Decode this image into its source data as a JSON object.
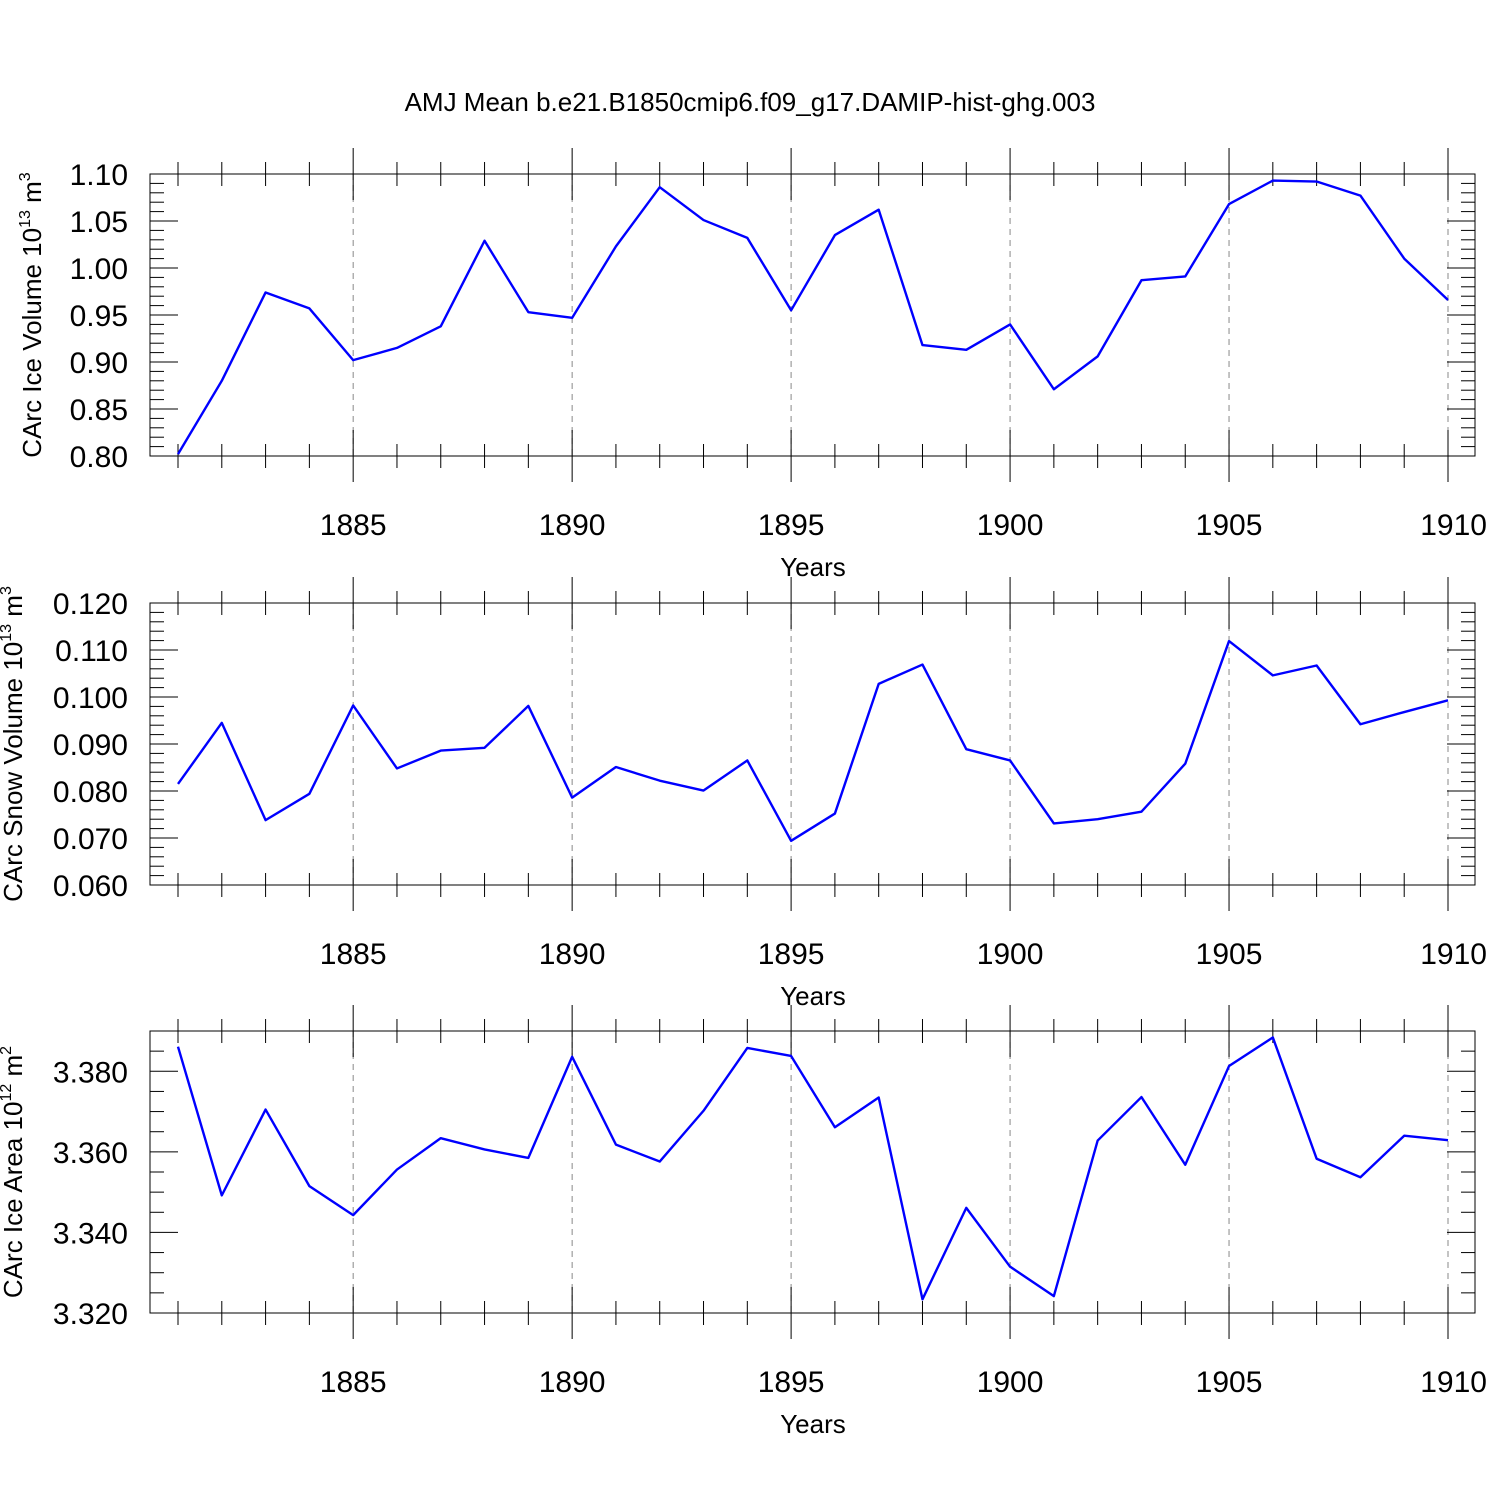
{
  "title": "AMJ Mean b.e21.B1850cmip6.f09_g17.DAMIP-hist-ghg.003",
  "colors": {
    "line": "#0000ff",
    "grid": "#888888"
  },
  "chart_data": [
    {
      "type": "line",
      "xlabel": "Years",
      "ylabel": "CArc Ice Volume 10",
      "ylabel_sup": "13",
      "ylabel_unit": "m",
      "ylabel_unit_sup": "3",
      "xlim": [
        1881,
        1910
      ],
      "ylim": [
        0.8,
        1.1
      ],
      "xticks": [
        1885,
        1890,
        1895,
        1900,
        1905,
        1910
      ],
      "xtick_labels": [
        "1885",
        "1890",
        "1895",
        "1900",
        "1905",
        "1910"
      ],
      "yticks": [
        0.8,
        0.85,
        0.9,
        0.95,
        1.0,
        1.05,
        1.1
      ],
      "ytick_labels": [
        "0.80",
        "0.85",
        "0.90",
        "0.95",
        "1.00",
        "1.05",
        "1.10"
      ],
      "yminor_step": 0.01,
      "grid": "x-dashed",
      "x": [
        1881,
        1882,
        1883,
        1884,
        1885,
        1886,
        1887,
        1888,
        1889,
        1890,
        1891,
        1892,
        1893,
        1894,
        1895,
        1896,
        1897,
        1898,
        1899,
        1900,
        1901,
        1902,
        1903,
        1904,
        1905,
        1906,
        1907,
        1908,
        1909,
        1910
      ],
      "y": [
        0.802,
        0.88,
        0.974,
        0.957,
        0.902,
        0.915,
        0.938,
        1.029,
        0.953,
        0.947,
        1.023,
        1.086,
        1.051,
        1.032,
        0.955,
        1.035,
        1.062,
        0.918,
        0.913,
        0.94,
        0.871,
        0.906,
        0.987,
        0.991,
        1.068,
        1.093,
        1.092,
        1.077,
        1.01,
        0.966
      ]
    },
    {
      "type": "line",
      "xlabel": "Years",
      "ylabel": "CArc Snow Volume 10",
      "ylabel_sup": "13",
      "ylabel_unit": "m",
      "ylabel_unit_sup": "3",
      "xlim": [
        1881,
        1910
      ],
      "ylim": [
        0.06,
        0.12
      ],
      "xticks": [
        1885,
        1890,
        1895,
        1900,
        1905,
        1910
      ],
      "xtick_labels": [
        "1885",
        "1890",
        "1895",
        "1900",
        "1905",
        "1910"
      ],
      "yticks": [
        0.06,
        0.07,
        0.08,
        0.09,
        0.1,
        0.11,
        0.12
      ],
      "ytick_labels": [
        "0.060",
        "0.070",
        "0.080",
        "0.090",
        "0.100",
        "0.110",
        "0.120"
      ],
      "yminor_step": 0.002,
      "grid": "x-dashed",
      "x": [
        1881,
        1882,
        1883,
        1884,
        1885,
        1886,
        1887,
        1888,
        1889,
        1890,
        1891,
        1892,
        1893,
        1894,
        1895,
        1896,
        1897,
        1898,
        1899,
        1900,
        1901,
        1902,
        1903,
        1904,
        1905,
        1906,
        1907,
        1908,
        1909,
        1910
      ],
      "y": [
        0.0815,
        0.0945,
        0.0738,
        0.0794,
        0.0982,
        0.0848,
        0.0886,
        0.0892,
        0.0981,
        0.0786,
        0.0851,
        0.0822,
        0.0801,
        0.0865,
        0.0694,
        0.0752,
        0.1028,
        0.1069,
        0.0889,
        0.0865,
        0.0731,
        0.074,
        0.0756,
        0.0858,
        0.1119,
        0.1046,
        0.1067,
        0.0942,
        0.0968,
        0.0993
      ]
    },
    {
      "type": "line",
      "xlabel": "Years",
      "ylabel": "CArc Ice Area 10",
      "ylabel_sup": "12",
      "ylabel_unit": "m",
      "ylabel_unit_sup": "2",
      "xlim": [
        1881,
        1910
      ],
      "ylim": [
        3.32,
        3.39
      ],
      "xticks": [
        1885,
        1890,
        1895,
        1900,
        1905,
        1910
      ],
      "xtick_labels": [
        "1885",
        "1890",
        "1895",
        "1900",
        "1905",
        "1910"
      ],
      "yticks": [
        3.32,
        3.34,
        3.36,
        3.38
      ],
      "ytick_labels": [
        "3.320",
        "3.340",
        "3.360",
        "3.380"
      ],
      "yminor_step": 0.005,
      "grid": "x-dashed",
      "x": [
        1881,
        1882,
        1883,
        1884,
        1885,
        1886,
        1887,
        1888,
        1889,
        1890,
        1891,
        1892,
        1893,
        1894,
        1895,
        1896,
        1897,
        1898,
        1899,
        1900,
        1901,
        1902,
        1903,
        1904,
        1905,
        1906,
        1907,
        1908,
        1909,
        1910
      ],
      "y": [
        3.3861,
        3.3492,
        3.3705,
        3.3515,
        3.3443,
        3.3556,
        3.3634,
        3.3606,
        3.3585,
        3.3836,
        3.3618,
        3.3576,
        3.3702,
        3.3858,
        3.3838,
        3.3661,
        3.3735,
        3.3234,
        3.3461,
        3.3315,
        3.3242,
        3.3628,
        3.3736,
        3.3568,
        3.3813,
        3.3884,
        3.3583,
        3.3537,
        3.364,
        3.3629
      ]
    }
  ]
}
